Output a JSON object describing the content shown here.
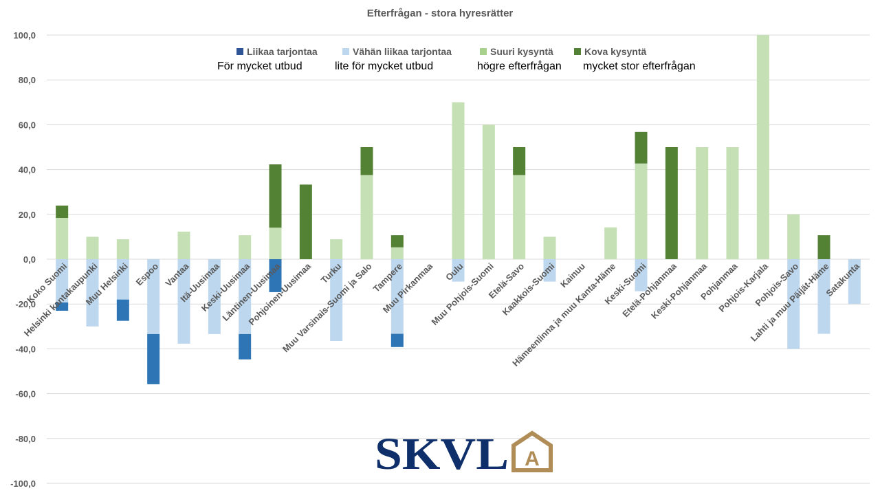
{
  "chart_data": {
    "type": "bar",
    "stacked": true,
    "title": "Efterfrågan - stora hyresrätter",
    "xlabel": "",
    "ylabel": "",
    "ylim": [
      -100,
      100
    ],
    "yticks": [
      "100,0",
      "80,0",
      "60,0",
      "40,0",
      "20,0",
      "0,0",
      "-20,0",
      "-40,0",
      "-60,0",
      "-80,0",
      "-100,0"
    ],
    "ytick_values": [
      100,
      80,
      60,
      40,
      20,
      0,
      -20,
      -40,
      -60,
      -80,
      -100
    ],
    "grid": true,
    "legend_position": "top",
    "categories": [
      "Koko Suomi",
      "Helsinki kantakaupunki",
      "Muu Helsinki",
      "Espoo",
      "Vantaa",
      "Itä-Uusimaa",
      "Keski-Uusimaa",
      "Läntinen-Uusimaa",
      "Pohjoinen-Uusimaa",
      "Turku",
      "Muu Varsinais-Suomi ja Salo",
      "Tampere",
      "Muu Pirkanmaa",
      "Oulu",
      "Muu Pohjois-Suomi",
      "Etelä-Savo",
      "Kaakkois-Suomi",
      "Kainuu",
      "Hämeenlinna ja muu Kanta-Häme",
      "Keski-Suomi",
      "Etelä-Pohjanmaa",
      "Keski-Pohjanmaa",
      "Pohjanmaa",
      "Pohjois-Karjala",
      "Pohjois-Savo",
      "Lahti ja muu Päijät-Häme",
      "Satakunta"
    ],
    "series": [
      {
        "name": "Liikaa tarjontaa",
        "subtitle": "För mycket utbud",
        "color": "#2e75b6",
        "legend_color": "#2f5597",
        "values": [
          -3.7,
          0,
          -9.5,
          -22.4,
          0,
          0,
          -11.3,
          -14.7,
          0,
          0,
          0,
          -5.9,
          0,
          0,
          0,
          0,
          0,
          0,
          0,
          0,
          0,
          0,
          0,
          0,
          0,
          0,
          0
        ]
      },
      {
        "name": "Vähän liikaa tarjontaa",
        "subtitle": "lite för mycket utbud",
        "color": "#bdd7ee",
        "legend_color": "#bdd7ee",
        "values": [
          -19.3,
          -30,
          -18,
          -33.4,
          -37.7,
          -33.4,
          -33.4,
          0,
          0,
          -36.5,
          0,
          -33.3,
          0,
          -10,
          0,
          0,
          -10,
          0,
          0,
          -14.3,
          0,
          0,
          0,
          0,
          -40,
          -33.3,
          -20
        ]
      },
      {
        "name": "Suuri kysyntä",
        "subtitle": "högre efterfrågan",
        "color": "#c5e0b4",
        "legend_color": "#a9d18e",
        "values": [
          18.4,
          10,
          8.9,
          0,
          12.3,
          0,
          10.7,
          14.1,
          0,
          8.9,
          37.5,
          5.3,
          0,
          70,
          60,
          37.5,
          10,
          0,
          14.2,
          42.7,
          0,
          50,
          50,
          100,
          20,
          0,
          0
        ]
      },
      {
        "name": "Kova kysyntä",
        "subtitle": "mycket stor efterfrågan",
        "color": "#548235",
        "legend_color": "#548235",
        "values": [
          5.5,
          0,
          0,
          0,
          0,
          0,
          0,
          28.2,
          33.3,
          0,
          12.5,
          5.4,
          0,
          0,
          0,
          12.5,
          0,
          0,
          0,
          14.1,
          50,
          0,
          0,
          0,
          0,
          10.7,
          0
        ]
      }
    ]
  },
  "logo": {
    "text": "SKVL",
    "badge": "A"
  }
}
